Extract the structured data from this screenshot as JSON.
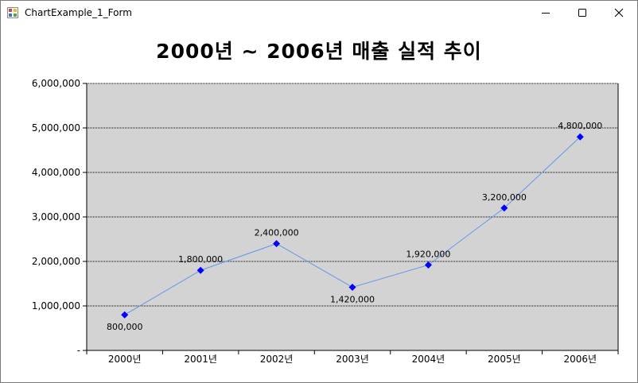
{
  "window": {
    "title": "ChartExample_1_Form",
    "minimize_icon": "minimize-icon",
    "maximize_icon": "maximize-icon",
    "close_icon": "close-icon"
  },
  "chart_data": {
    "type": "line",
    "title": "2000년 ~ 2006년 매출 실적 추이",
    "categories": [
      "2000년",
      "2001년",
      "2002년",
      "2003년",
      "2004년",
      "2005년",
      "2006년"
    ],
    "values": [
      800000,
      1800000,
      2400000,
      1420000,
      1920000,
      3200000,
      4800000
    ],
    "data_labels": [
      "800,000",
      "1,800,000",
      "2,400,000",
      "1,420,000",
      "1,920,000",
      "3,200,000",
      "4,800,000"
    ],
    "y_ticks": [
      0,
      1000000,
      2000000,
      3000000,
      4000000,
      5000000,
      6000000
    ],
    "y_tick_labels": [
      "-",
      "1,000,000",
      "2,000,000",
      "3,000,000",
      "4,000,000",
      "5,000,000",
      "6,000,000"
    ],
    "ylim": [
      0,
      6000000
    ],
    "grid": true,
    "legend": "none",
    "plot_background": "#d3d3d3",
    "line_color": "#6495ed",
    "marker_color": "#0000ff",
    "marker": "diamond"
  }
}
